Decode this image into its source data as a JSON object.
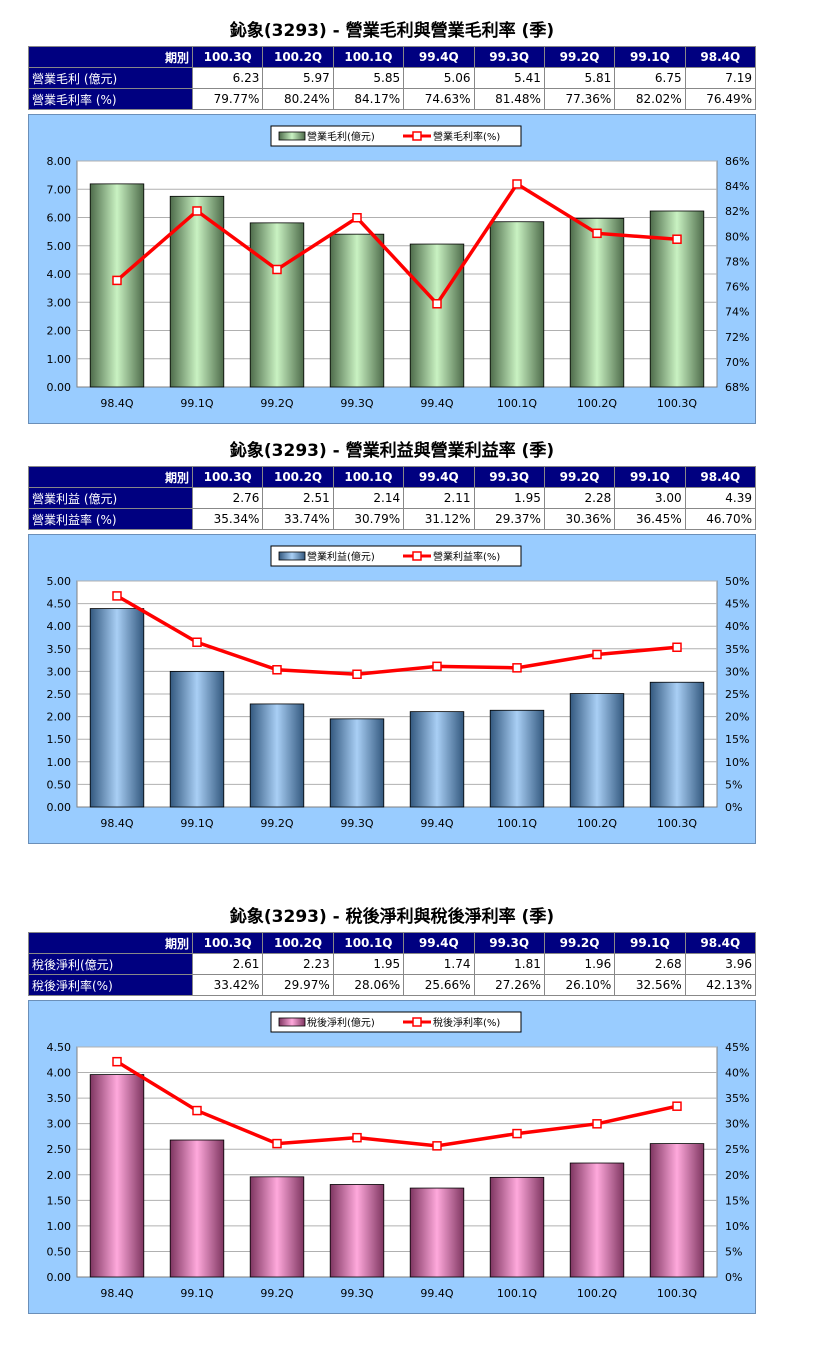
{
  "colors": {
    "header_bg": "#000080",
    "chart_bg": "#99CCFF",
    "line": "#FF0000",
    "green_bar": "#B8E8B0",
    "blue_bar": "#7FB2E8",
    "pink_bar": "#F28FC8"
  },
  "charts": [
    {
      "title": "鈊象(3293) - 營業毛利與營業毛利率 (季)",
      "table": {
        "header_label": "期別",
        "periods": [
          "100.3Q",
          "100.2Q",
          "100.1Q",
          "99.4Q",
          "99.3Q",
          "99.2Q",
          "99.1Q",
          "98.4Q"
        ],
        "rows": [
          {
            "label": "營業毛利 (億元)",
            "values": [
              "6.23",
              "5.97",
              "5.85",
              "5.06",
              "5.41",
              "5.81",
              "6.75",
              "7.19"
            ]
          },
          {
            "label": "營業毛利率 (%)",
            "values": [
              "79.77%",
              "80.24%",
              "84.17%",
              "74.63%",
              "81.48%",
              "77.36%",
              "82.02%",
              "76.49%"
            ]
          }
        ]
      },
      "legend": {
        "bar": "營業毛利(億元)",
        "line": "營業毛利率(%)"
      },
      "bar_color": "green",
      "left_ticks": [
        "0.00",
        "1.00",
        "2.00",
        "3.00",
        "4.00",
        "5.00",
        "6.00",
        "7.00",
        "8.00"
      ],
      "right_ticks": [
        "68%",
        "70%",
        "72%",
        "74%",
        "76%",
        "78%",
        "80%",
        "82%",
        "84%",
        "86%"
      ]
    },
    {
      "title": "鈊象(3293) - 營業利益與營業利益率 (季)",
      "table": {
        "header_label": "期別",
        "periods": [
          "100.3Q",
          "100.2Q",
          "100.1Q",
          "99.4Q",
          "99.3Q",
          "99.2Q",
          "99.1Q",
          "98.4Q"
        ],
        "rows": [
          {
            "label": "營業利益 (億元)",
            "values": [
              "2.76",
              "2.51",
              "2.14",
              "2.11",
              "1.95",
              "2.28",
              "3.00",
              "4.39"
            ]
          },
          {
            "label": "營業利益率 (%)",
            "values": [
              "35.34%",
              "33.74%",
              "30.79%",
              "31.12%",
              "29.37%",
              "30.36%",
              "36.45%",
              "46.70%"
            ]
          }
        ]
      },
      "legend": {
        "bar": "營業利益(億元)",
        "line": "營業利益率(%)"
      },
      "bar_color": "blue",
      "left_ticks": [
        "0.00",
        "0.50",
        "1.00",
        "1.50",
        "2.00",
        "2.50",
        "3.00",
        "3.50",
        "4.00",
        "4.50",
        "5.00"
      ],
      "right_ticks": [
        "0%",
        "5%",
        "10%",
        "15%",
        "20%",
        "25%",
        "30%",
        "35%",
        "40%",
        "45%",
        "50%"
      ]
    },
    {
      "title": "鈊象(3293) - 稅後淨利與稅後淨利率 (季)",
      "table": {
        "header_label": "期別",
        "periods": [
          "100.3Q",
          "100.2Q",
          "100.1Q",
          "99.4Q",
          "99.3Q",
          "99.2Q",
          "99.1Q",
          "98.4Q"
        ],
        "rows": [
          {
            "label": "稅後淨利(億元)",
            "values": [
              "2.61",
              "2.23",
              "1.95",
              "1.74",
              "1.81",
              "1.96",
              "2.68",
              "3.96"
            ]
          },
          {
            "label": "稅後淨利率(%)",
            "values": [
              "33.42%",
              "29.97%",
              "28.06%",
              "25.66%",
              "27.26%",
              "26.10%",
              "32.56%",
              "42.13%"
            ]
          }
        ]
      },
      "legend": {
        "bar": "稅後淨利(億元)",
        "line": "稅後淨利率(%)"
      },
      "bar_color": "pink",
      "left_ticks": [
        "0.00",
        "0.50",
        "1.00",
        "1.50",
        "2.00",
        "2.50",
        "3.00",
        "3.50",
        "4.00",
        "4.50"
      ],
      "right_ticks": [
        "0%",
        "5%",
        "10%",
        "15%",
        "20%",
        "25%",
        "30%",
        "35%",
        "40%",
        "45%"
      ]
    }
  ],
  "chart_data": [
    {
      "type": "bar",
      "categories": [
        "98.4Q",
        "99.1Q",
        "99.2Q",
        "99.3Q",
        "99.4Q",
        "100.1Q",
        "100.2Q",
        "100.3Q"
      ],
      "series": [
        {
          "name": "營業毛利(億元)",
          "type": "bar",
          "axis": "left",
          "values": [
            7.19,
            6.75,
            5.81,
            5.41,
            5.06,
            5.85,
            5.97,
            6.23
          ]
        },
        {
          "name": "營業毛利率(%)",
          "type": "line",
          "axis": "right",
          "values": [
            76.49,
            82.02,
            77.36,
            81.48,
            74.63,
            84.17,
            80.24,
            79.77
          ]
        }
      ],
      "ylim": [
        0,
        8
      ],
      "y2lim": [
        68,
        86
      ],
      "grid": true,
      "legend_position": "top-center"
    },
    {
      "type": "bar",
      "categories": [
        "98.4Q",
        "99.1Q",
        "99.2Q",
        "99.3Q",
        "99.4Q",
        "100.1Q",
        "100.2Q",
        "100.3Q"
      ],
      "series": [
        {
          "name": "營業利益(億元)",
          "type": "bar",
          "axis": "left",
          "values": [
            4.39,
            3.0,
            2.28,
            1.95,
            2.11,
            2.14,
            2.51,
            2.76
          ]
        },
        {
          "name": "營業利益率(%)",
          "type": "line",
          "axis": "right",
          "values": [
            46.7,
            36.45,
            30.36,
            29.37,
            31.12,
            30.79,
            33.74,
            35.34
          ]
        }
      ],
      "ylim": [
        0,
        5
      ],
      "y2lim": [
        0,
        50
      ],
      "grid": true,
      "legend_position": "top-center"
    },
    {
      "type": "bar",
      "categories": [
        "98.4Q",
        "99.1Q",
        "99.2Q",
        "99.3Q",
        "99.4Q",
        "100.1Q",
        "100.2Q",
        "100.3Q"
      ],
      "series": [
        {
          "name": "稅後淨利(億元)",
          "type": "bar",
          "axis": "left",
          "values": [
            3.96,
            2.68,
            1.96,
            1.81,
            1.74,
            1.95,
            2.23,
            2.61
          ]
        },
        {
          "name": "稅後淨利率(%)",
          "type": "line",
          "axis": "right",
          "values": [
            42.13,
            32.56,
            26.1,
            27.26,
            25.66,
            28.06,
            29.97,
            33.42
          ]
        }
      ],
      "ylim": [
        0,
        4.5
      ],
      "y2lim": [
        0,
        45
      ],
      "grid": true,
      "legend_position": "top-center"
    }
  ]
}
